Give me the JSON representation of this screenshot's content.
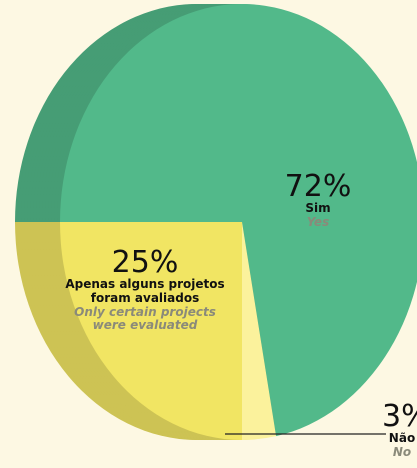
{
  "chart_data": {
    "type": "pie",
    "categories": [
      "Sim",
      "Não",
      "Apenas alguns projetos foram avaliados"
    ],
    "categories_en": [
      "Yes",
      "No",
      "Only certain projects were evaluated"
    ],
    "values": [
      72,
      3,
      25
    ],
    "value_labels": [
      "72%",
      "3%",
      "25%"
    ],
    "colors": [
      "#52b98a",
      "#fbf29c",
      "#f1e563"
    ]
  }
}
